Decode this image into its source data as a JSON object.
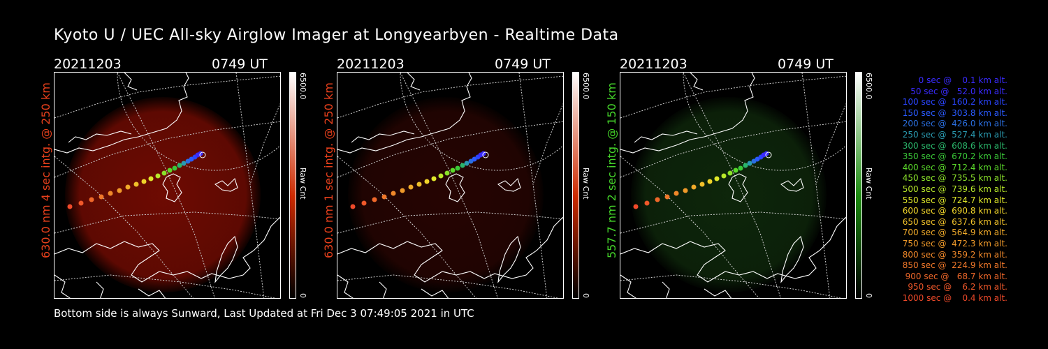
{
  "title": "Kyoto U / UEC All-sky Airglow Imager at Longyearbyen - Realtime Data",
  "footer": "Bottom side is always Sunward, Last Updated at Fri Dec  3 07:49:05 2021 in UTC",
  "panels": [
    {
      "date": "20211203",
      "time": "0749 UT",
      "side_label": "630.0 nm 4 sec intg. @ 250 km",
      "label_color": "#e8401c",
      "cbar_max": "6500.0",
      "cbar_min": "0",
      "cbar_title": "Raw Cnt",
      "cbar_color": "#cc2a00",
      "glow_color": "#7a0c02",
      "glow_opacity": 0.9
    },
    {
      "date": "20211203",
      "time": "0749 UT",
      "side_label": "630.0 nm 1 sec intg. @ 250 km",
      "label_color": "#e8401c",
      "cbar_max": "6500.0",
      "cbar_min": "0",
      "cbar_title": "Raw Cnt",
      "cbar_color": "#cc2a00",
      "glow_color": "#2a0502",
      "glow_opacity": 0.9
    },
    {
      "date": "20211203",
      "time": "0749 UT",
      "side_label": "557.7 nm 2 sec intg. @ 150 km",
      "label_color": "#45d42a",
      "cbar_max": "6500.0",
      "cbar_min": "0",
      "cbar_title": "Raw Cnt",
      "cbar_color": "#1c8a10",
      "glow_color": "#0f2a0c",
      "glow_opacity": 0.9
    }
  ],
  "legend": [
    {
      "text": "   0 sec @    0.1 km alt.",
      "color": "#3a2bff"
    },
    {
      "text": "  50 sec @   52.0 km alt.",
      "color": "#3a2bff"
    },
    {
      "text": " 100 sec @  160.2 km alt.",
      "color": "#2a45ff"
    },
    {
      "text": " 150 sec @  303.8 km alt.",
      "color": "#2a5bff"
    },
    {
      "text": " 200 sec @  426.0 km alt.",
      "color": "#2a6fe0"
    },
    {
      "text": " 250 sec @  527.4 km alt.",
      "color": "#2a9ab0"
    },
    {
      "text": " 300 sec @  608.6 km alt.",
      "color": "#2ab56a"
    },
    {
      "text": " 350 sec @  670.2 km alt.",
      "color": "#3ac838"
    },
    {
      "text": " 400 sec @  712.4 km alt.",
      "color": "#5ad82a"
    },
    {
      "text": " 450 sec @  735.5 km alt.",
      "color": "#8ae02a"
    },
    {
      "text": " 500 sec @  739.6 km alt.",
      "color": "#b8e82a"
    },
    {
      "text": " 550 sec @  724.7 km alt.",
      "color": "#e0e82a"
    },
    {
      "text": " 600 sec @  690.8 km alt.",
      "color": "#f0d42a"
    },
    {
      "text": " 650 sec @  637.6 km alt.",
      "color": "#f0c02a"
    },
    {
      "text": " 700 sec @  564.9 km alt.",
      "color": "#f0aa2a"
    },
    {
      "text": " 750 sec @  472.3 km alt.",
      "color": "#f09a2a"
    },
    {
      "text": " 800 sec @  359.2 km alt.",
      "color": "#f0882a"
    },
    {
      "text": " 850 sec @  224.9 km alt.",
      "color": "#f0782a"
    },
    {
      "text": " 900 sec @   68.7 km alt.",
      "color": "#f0682a"
    },
    {
      "text": " 950 sec @    6.2 km alt.",
      "color": "#f0582a"
    },
    {
      "text": "1000 sec @    0.4 km alt.",
      "color": "#f04a2a"
    }
  ]
}
